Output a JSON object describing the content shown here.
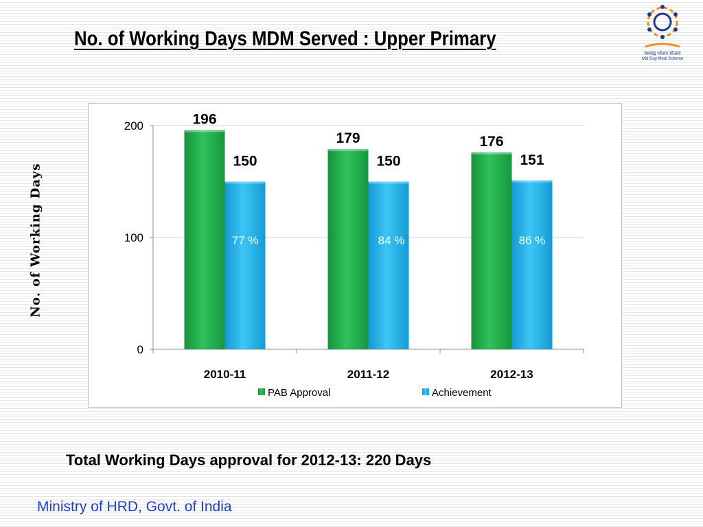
{
  "slide": {
    "title": "No. of Working Days MDM Served : Upper Primary",
    "note": "Total Working Days approval for 2012-13: 220 Days",
    "footer": "Ministry of HRD, Govt. of India",
    "logo_caption_hindi": "मध्याह्न भोजन योजना",
    "logo_caption": "Mid Day Meal Scheme"
  },
  "chart_data": {
    "type": "bar",
    "categories": [
      "2010-11",
      "2011-12",
      "2012-13"
    ],
    "series": [
      {
        "name": "PAB Approval",
        "values": [
          196,
          179,
          176
        ],
        "color": "#21a84a"
      },
      {
        "name": "Achievement",
        "values": [
          150,
          150,
          151
        ],
        "color": "#1aaeea"
      }
    ],
    "achievement_percent_labels": [
      "77 %",
      "84 %",
      "86 %"
    ],
    "ylabel": "No. of Working Days",
    "xlabel": "",
    "ylim": [
      0,
      200
    ],
    "yticks": [
      0,
      100,
      200
    ],
    "grid": true,
    "legend": "bottom"
  }
}
